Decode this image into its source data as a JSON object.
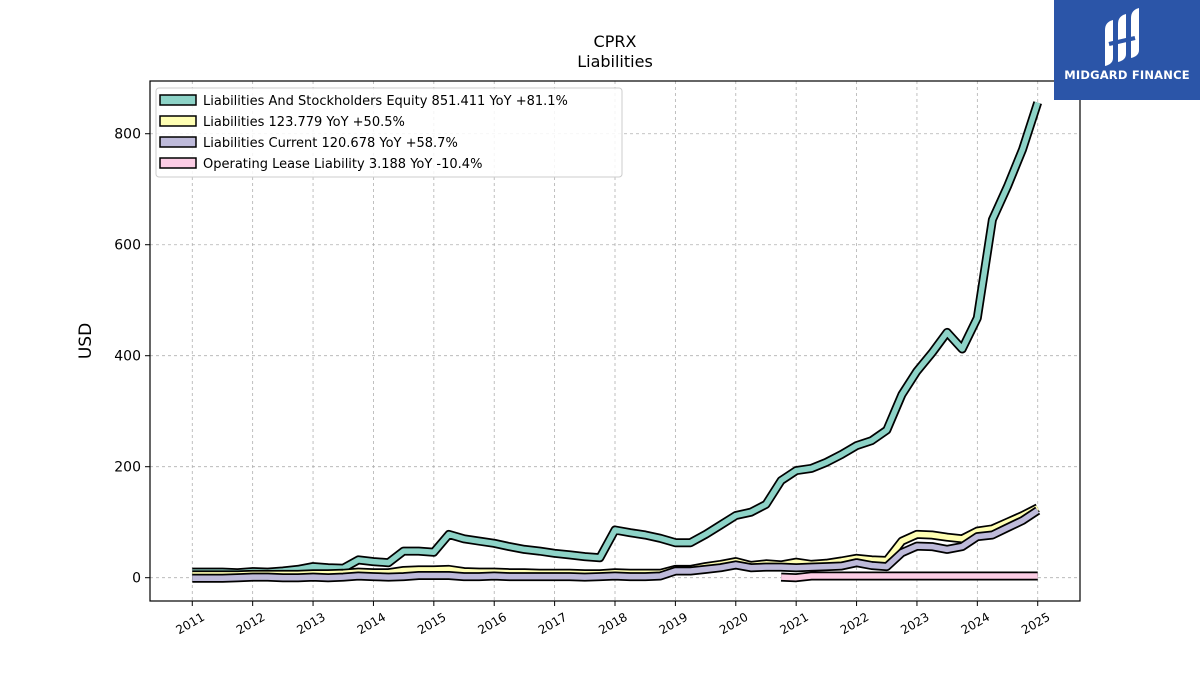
{
  "brand": {
    "name": "MIDGARD FINANCE",
    "bg_color": "#2b55a8",
    "icon": "midgard-logo-icon"
  },
  "chart_data": {
    "type": "line",
    "title": "CPRX",
    "subtitle": "Liabilities",
    "ylabel": "USD",
    "xlabel": "",
    "xlim": [
      2010.3,
      2025.7
    ],
    "ylim": [
      -42,
      895
    ],
    "yticks": [
      0,
      200,
      400,
      600,
      800
    ],
    "xticks": [
      "2011",
      "2012",
      "2013",
      "2014",
      "2015",
      "2016",
      "2017",
      "2018",
      "2019",
      "2020",
      "2021",
      "2022",
      "2023",
      "2024",
      "2025"
    ],
    "grid": true,
    "legend_position": "top-left",
    "series": [
      {
        "name": "Liabilities And Stockholders Equity",
        "legend": "Liabilities And Stockholders Equity  851.411 YoY +81.1%",
        "color": "#8dd3c7",
        "points": [
          [
            2011.0,
            10
          ],
          [
            2011.25,
            10
          ],
          [
            2011.5,
            10
          ],
          [
            2011.75,
            9
          ],
          [
            2012.0,
            11
          ],
          [
            2012.25,
            10
          ],
          [
            2012.5,
            12
          ],
          [
            2012.75,
            15
          ],
          [
            2013.0,
            20
          ],
          [
            2013.25,
            18
          ],
          [
            2013.5,
            17
          ],
          [
            2013.75,
            32
          ],
          [
            2014.0,
            29
          ],
          [
            2014.25,
            27
          ],
          [
            2014.5,
            48
          ],
          [
            2014.75,
            48
          ],
          [
            2015.0,
            46
          ],
          [
            2015.25,
            78
          ],
          [
            2015.5,
            70
          ],
          [
            2015.75,
            66
          ],
          [
            2016.0,
            62
          ],
          [
            2016.25,
            56
          ],
          [
            2016.5,
            51
          ],
          [
            2016.75,
            48
          ],
          [
            2017.0,
            44
          ],
          [
            2017.25,
            41
          ],
          [
            2017.5,
            38
          ],
          [
            2017.75,
            36
          ],
          [
            2018.0,
            86
          ],
          [
            2018.25,
            81
          ],
          [
            2018.5,
            77
          ],
          [
            2018.75,
            71
          ],
          [
            2019.0,
            63
          ],
          [
            2019.25,
            63
          ],
          [
            2019.5,
            78
          ],
          [
            2019.75,
            95
          ],
          [
            2020.0,
            112
          ],
          [
            2020.25,
            118
          ],
          [
            2020.5,
            132
          ],
          [
            2020.75,
            175
          ],
          [
            2021.0,
            193
          ],
          [
            2021.25,
            197
          ],
          [
            2021.5,
            208
          ],
          [
            2021.75,
            222
          ],
          [
            2022.0,
            238
          ],
          [
            2022.25,
            247
          ],
          [
            2022.5,
            266
          ],
          [
            2022.75,
            330
          ],
          [
            2023.0,
            372
          ],
          [
            2023.25,
            405
          ],
          [
            2023.5,
            442
          ],
          [
            2023.75,
            412
          ],
          [
            2024.0,
            468
          ],
          [
            2024.25,
            645
          ],
          [
            2024.5,
            705
          ],
          [
            2024.75,
            772
          ],
          [
            2025.0,
            856
          ]
        ]
      },
      {
        "name": "Liabilities",
        "legend": "Liabilities  123.779 YoY +50.5%",
        "color": "#ffffb3",
        "points": [
          [
            2011.0,
            5
          ],
          [
            2011.25,
            5
          ],
          [
            2011.5,
            5
          ],
          [
            2011.75,
            5
          ],
          [
            2012.0,
            6
          ],
          [
            2012.25,
            6
          ],
          [
            2012.5,
            6
          ],
          [
            2012.75,
            6
          ],
          [
            2013.0,
            7
          ],
          [
            2013.25,
            7
          ],
          [
            2013.5,
            8
          ],
          [
            2013.75,
            10
          ],
          [
            2014.0,
            9
          ],
          [
            2014.25,
            9
          ],
          [
            2014.5,
            13
          ],
          [
            2014.75,
            14
          ],
          [
            2015.0,
            14
          ],
          [
            2015.25,
            15
          ],
          [
            2015.5,
            11
          ],
          [
            2015.75,
            10
          ],
          [
            2016.0,
            10
          ],
          [
            2016.25,
            9
          ],
          [
            2016.5,
            9
          ],
          [
            2016.75,
            8
          ],
          [
            2017.0,
            8
          ],
          [
            2017.25,
            8
          ],
          [
            2017.5,
            7
          ],
          [
            2017.75,
            7
          ],
          [
            2018.0,
            9
          ],
          [
            2018.25,
            8
          ],
          [
            2018.5,
            8
          ],
          [
            2018.75,
            8
          ],
          [
            2019.0,
            15
          ],
          [
            2019.25,
            15
          ],
          [
            2019.5,
            20
          ],
          [
            2019.75,
            24
          ],
          [
            2020.0,
            29
          ],
          [
            2020.25,
            22
          ],
          [
            2020.5,
            25
          ],
          [
            2020.75,
            23
          ],
          [
            2021.0,
            28
          ],
          [
            2021.25,
            24
          ],
          [
            2021.5,
            26
          ],
          [
            2021.75,
            30
          ],
          [
            2022.0,
            35
          ],
          [
            2022.25,
            32
          ],
          [
            2022.5,
            31
          ],
          [
            2022.75,
            66
          ],
          [
            2023.0,
            78
          ],
          [
            2023.25,
            77
          ],
          [
            2023.5,
            73
          ],
          [
            2023.75,
            70
          ],
          [
            2024.0,
            84
          ],
          [
            2024.25,
            88
          ],
          [
            2024.5,
            100
          ],
          [
            2024.75,
            112
          ],
          [
            2025.0,
            126
          ]
        ]
      },
      {
        "name": "Liabilities Current",
        "legend": "Liabilities Current  120.678 YoY +58.7%",
        "color": "#bebada",
        "points": [
          [
            2011.0,
            -1
          ],
          [
            2011.25,
            -1
          ],
          [
            2011.5,
            -1
          ],
          [
            2011.75,
            0
          ],
          [
            2012.0,
            1
          ],
          [
            2012.25,
            1
          ],
          [
            2012.5,
            0
          ],
          [
            2012.75,
            0
          ],
          [
            2013.0,
            1
          ],
          [
            2013.25,
            0
          ],
          [
            2013.5,
            1
          ],
          [
            2013.75,
            3
          ],
          [
            2014.0,
            2
          ],
          [
            2014.25,
            1
          ],
          [
            2014.5,
            2
          ],
          [
            2014.75,
            4
          ],
          [
            2015.0,
            4
          ],
          [
            2015.25,
            4
          ],
          [
            2015.5,
            2
          ],
          [
            2015.75,
            2
          ],
          [
            2016.0,
            3
          ],
          [
            2016.25,
            2
          ],
          [
            2016.5,
            2
          ],
          [
            2016.75,
            2
          ],
          [
            2017.0,
            2
          ],
          [
            2017.25,
            2
          ],
          [
            2017.5,
            1
          ],
          [
            2017.75,
            2
          ],
          [
            2018.0,
            3
          ],
          [
            2018.25,
            2
          ],
          [
            2018.5,
            2
          ],
          [
            2018.75,
            3
          ],
          [
            2019.0,
            12
          ],
          [
            2019.25,
            12
          ],
          [
            2019.5,
            15
          ],
          [
            2019.75,
            18
          ],
          [
            2020.0,
            23
          ],
          [
            2020.25,
            18
          ],
          [
            2020.5,
            19
          ],
          [
            2020.75,
            19
          ],
          [
            2021.0,
            18
          ],
          [
            2021.25,
            19
          ],
          [
            2021.5,
            20
          ],
          [
            2021.75,
            21
          ],
          [
            2022.0,
            27
          ],
          [
            2022.25,
            22
          ],
          [
            2022.5,
            20
          ],
          [
            2022.75,
            45
          ],
          [
            2023.0,
            57
          ],
          [
            2023.25,
            56
          ],
          [
            2023.5,
            51
          ],
          [
            2023.75,
            56
          ],
          [
            2024.0,
            74
          ],
          [
            2024.25,
            77
          ],
          [
            2024.5,
            90
          ],
          [
            2024.75,
            103
          ],
          [
            2025.0,
            121
          ]
        ]
      },
      {
        "name": "Operating Lease Liability",
        "legend": "Operating Lease Liability  3.188 YoY -10.4%",
        "color": "#fccde5",
        "points": [
          [
            2020.75,
            1
          ],
          [
            2021.0,
            0
          ],
          [
            2021.25,
            3
          ],
          [
            2021.5,
            3
          ],
          [
            2021.75,
            3
          ],
          [
            2022.0,
            3
          ],
          [
            2022.25,
            3
          ],
          [
            2022.5,
            3
          ],
          [
            2022.75,
            3
          ],
          [
            2023.0,
            3
          ],
          [
            2023.25,
            3
          ],
          [
            2023.5,
            3
          ],
          [
            2023.75,
            3
          ],
          [
            2024.0,
            3
          ],
          [
            2024.25,
            3
          ],
          [
            2024.5,
            3
          ],
          [
            2024.75,
            3
          ],
          [
            2025.0,
            3
          ]
        ]
      }
    ]
  }
}
